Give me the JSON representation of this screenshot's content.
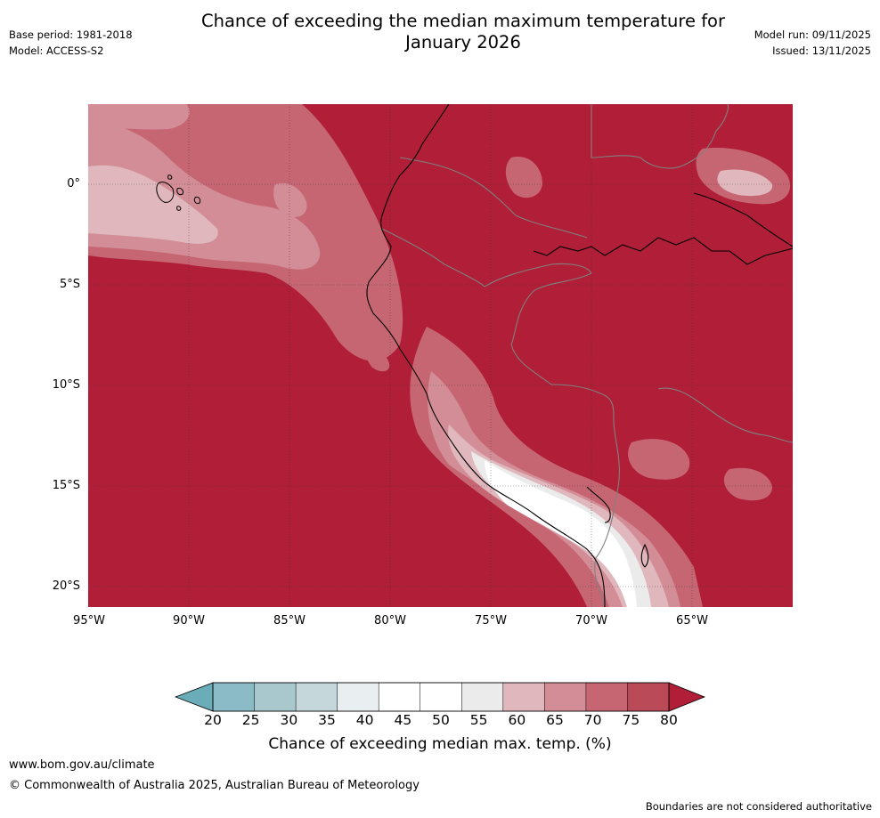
{
  "title": {
    "line1": "Chance of exceeding the median maximum temperature for",
    "line2": "January 2026"
  },
  "meta_left": {
    "base_period": "Base period: 1981-2018",
    "model": "Model: ACCESS-S2"
  },
  "meta_right": {
    "model_run": "Model run: 09/11/2025",
    "issued": "Issued: 13/11/2025"
  },
  "map": {
    "region": "Western South America and eastern Pacific",
    "lat_labels": [
      "0°",
      "5°S",
      "10°S",
      "15°S",
      "20°S"
    ],
    "lon_labels": [
      "95°W",
      "90°W",
      "85°W",
      "80°W",
      "75°W",
      "70°W",
      "65°W"
    ]
  },
  "colorbar": {
    "ticks": [
      "20",
      "25",
      "30",
      "35",
      "40",
      "45",
      "50",
      "55",
      "60",
      "65",
      "70",
      "75",
      "80"
    ],
    "colors": [
      "#6aacb8",
      "#8bbbc6",
      "#a9c8ce",
      "#c6d7dc",
      "#e9eff1",
      "#ffffff",
      "#ffffff",
      "#ebebec",
      "#dfb7bc",
      "#d28d97",
      "#c76673",
      "#bb4a58",
      "#b01e38"
    ],
    "label": "Chance of exceeding median max. temp. (%)"
  },
  "footer": {
    "url": "www.bom.gov.au/climate",
    "copyright": "© Commonwealth of Australia 2025, Australian Bureau of Meteorology",
    "disclaimer": "Boundaries are not considered authoritative"
  }
}
